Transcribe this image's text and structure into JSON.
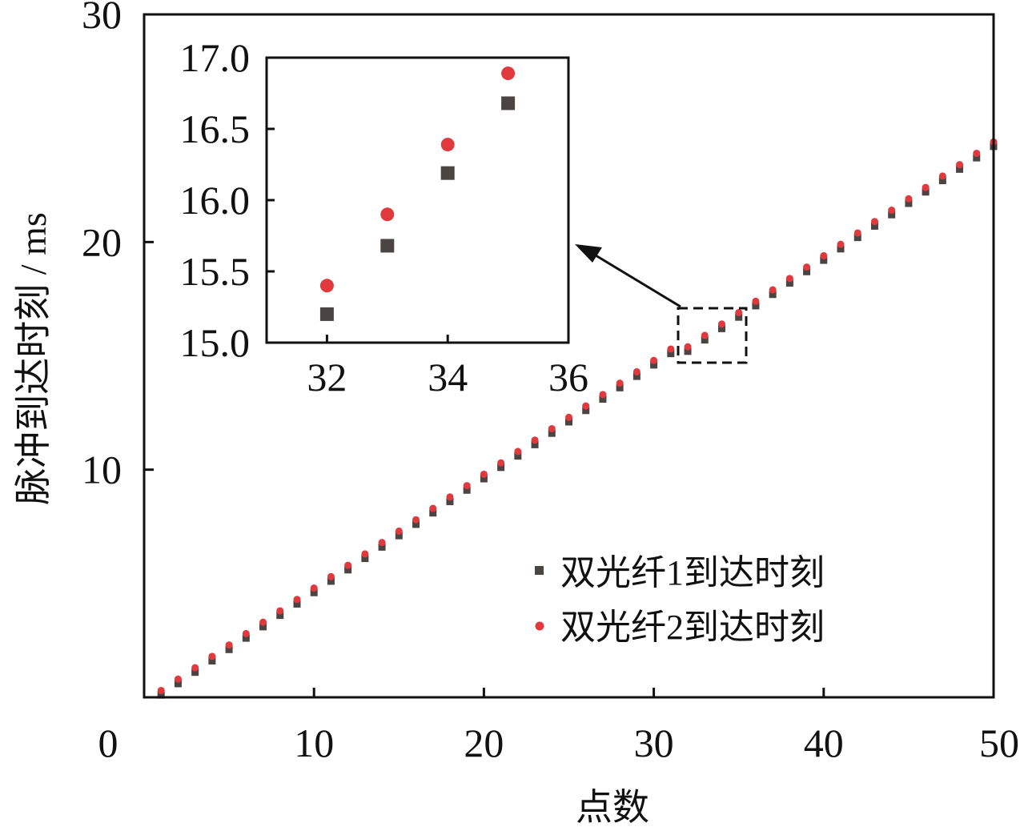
{
  "chart_data": [
    {
      "type": "scatter",
      "xlabel": "点数",
      "ylabel": "脉冲到达时刻 / ms",
      "xlim": [
        0,
        50
      ],
      "ylim": [
        0,
        30
      ],
      "x_ticks": [
        0,
        10,
        20,
        30,
        40,
        50
      ],
      "y_ticks": [
        10,
        20,
        30
      ],
      "legend_position": "bottom-right",
      "series": [
        {
          "name": "双光纤1到达时刻",
          "marker": "square",
          "color": "#4a4542",
          "x": [
            1,
            2,
            3,
            4,
            5,
            6,
            7,
            8,
            9,
            10,
            11,
            12,
            13,
            14,
            15,
            16,
            17,
            18,
            19,
            20,
            21,
            22,
            23,
            24,
            25,
            26,
            27,
            28,
            29,
            30,
            31,
            32,
            33,
            34,
            35,
            36,
            37,
            38,
            39,
            40,
            41,
            42,
            43,
            44,
            45,
            46,
            47,
            48,
            49,
            50
          ],
          "y": [
            0.1,
            0.6,
            1.1,
            1.6,
            2.1,
            2.6,
            3.1,
            3.6,
            4.1,
            4.6,
            5.1,
            5.6,
            6.1,
            6.6,
            7.1,
            7.6,
            8.1,
            8.6,
            9.1,
            9.6,
            10.1,
            10.6,
            11.1,
            11.6,
            12.1,
            12.6,
            13.1,
            13.6,
            14.1,
            14.6,
            15.1,
            15.2,
            15.7,
            16.2,
            16.7,
            17.2,
            17.7,
            18.2,
            18.7,
            19.2,
            19.7,
            20.2,
            20.7,
            21.2,
            21.7,
            22.2,
            22.7,
            23.2,
            23.7,
            24.2
          ]
        },
        {
          "name": "双光纤2到达时刻",
          "marker": "circle",
          "color": "#e0393e",
          "x": [
            1,
            2,
            3,
            4,
            5,
            6,
            7,
            8,
            9,
            10,
            11,
            12,
            13,
            14,
            15,
            16,
            17,
            18,
            19,
            20,
            21,
            22,
            23,
            24,
            25,
            26,
            27,
            28,
            29,
            30,
            31,
            32,
            33,
            34,
            35,
            36,
            37,
            38,
            39,
            40,
            41,
            42,
            43,
            44,
            45,
            46,
            47,
            48,
            49,
            50
          ],
          "y": [
            0.3,
            0.8,
            1.3,
            1.8,
            2.3,
            2.8,
            3.3,
            3.8,
            4.3,
            4.8,
            5.3,
            5.8,
            6.3,
            6.8,
            7.3,
            7.8,
            8.3,
            8.8,
            9.3,
            9.8,
            10.3,
            10.8,
            11.3,
            11.8,
            12.3,
            12.8,
            13.3,
            13.8,
            14.3,
            14.8,
            15.3,
            15.4,
            15.9,
            16.4,
            16.9,
            17.4,
            17.9,
            18.4,
            18.9,
            19.4,
            19.9,
            20.4,
            20.9,
            21.4,
            21.9,
            22.4,
            22.9,
            23.4,
            23.9,
            24.4
          ]
        }
      ]
    },
    {
      "type": "scatter",
      "inset_of": 0,
      "xlim": [
        31,
        36
      ],
      "ylim": [
        15.0,
        17.0
      ],
      "x_ticks": [
        32,
        34,
        36
      ],
      "y_ticks": [
        "15.0",
        "15.5",
        "16.0",
        "16.5",
        "17.0"
      ],
      "series": [
        {
          "name": "双光纤1到达时刻",
          "marker": "square",
          "color": "#4a4542",
          "x": [
            32,
            33,
            34,
            35
          ],
          "y": [
            15.2,
            15.68,
            16.19,
            16.68
          ]
        },
        {
          "name": "双光纤2到达时刻",
          "marker": "circle",
          "color": "#e0393e",
          "x": [
            32,
            33,
            34,
            35
          ],
          "y": [
            15.4,
            15.9,
            16.39,
            16.89
          ]
        }
      ]
    }
  ]
}
